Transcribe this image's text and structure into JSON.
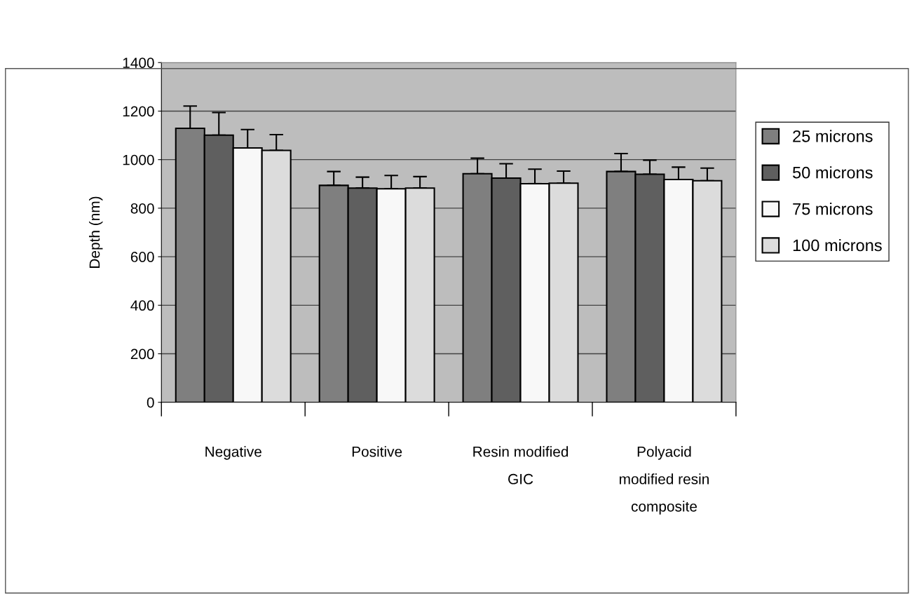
{
  "chart_data": {
    "type": "bar",
    "ylabel": "Depth (nm)",
    "categories": [
      "Negative",
      "Positive",
      "Resin modified\nGIC",
      "Polyacid\nmodified resin\ncomposite"
    ],
    "series": [
      {
        "name": "25 microns",
        "color": "#7f7f7f",
        "values": [
          1129,
          894,
          942,
          951
        ],
        "errors": [
          [
            1129,
            1221
          ],
          [
            894,
            951
          ],
          [
            942,
            1006
          ],
          [
            951,
            1025
          ]
        ]
      },
      {
        "name": "50 microns",
        "color": "#5f5f5f",
        "values": [
          1101,
          883,
          924,
          940
        ],
        "errors": [
          [
            1101,
            1194
          ],
          [
            883,
            928
          ],
          [
            924,
            983
          ],
          [
            940,
            998
          ]
        ]
      },
      {
        "name": "75 microns",
        "color": "#f8f8f8",
        "values": [
          1048,
          880,
          901,
          918
        ],
        "errors": [
          [
            1048,
            1124
          ],
          [
            880,
            935
          ],
          [
            901,
            961
          ],
          [
            918,
            969
          ]
        ]
      },
      {
        "name": "100 microns",
        "color": "#dcdcdc",
        "values": [
          1038,
          883,
          903,
          913
        ],
        "errors": [
          [
            1038,
            1103
          ],
          [
            883,
            930
          ],
          [
            903,
            953
          ],
          [
            913,
            965
          ]
        ]
      }
    ],
    "ylim": [
      0,
      1400
    ],
    "yticks": [
      0,
      200,
      400,
      600,
      800,
      1000,
      1200,
      1400
    ],
    "grid": "y",
    "legend": "right"
  }
}
